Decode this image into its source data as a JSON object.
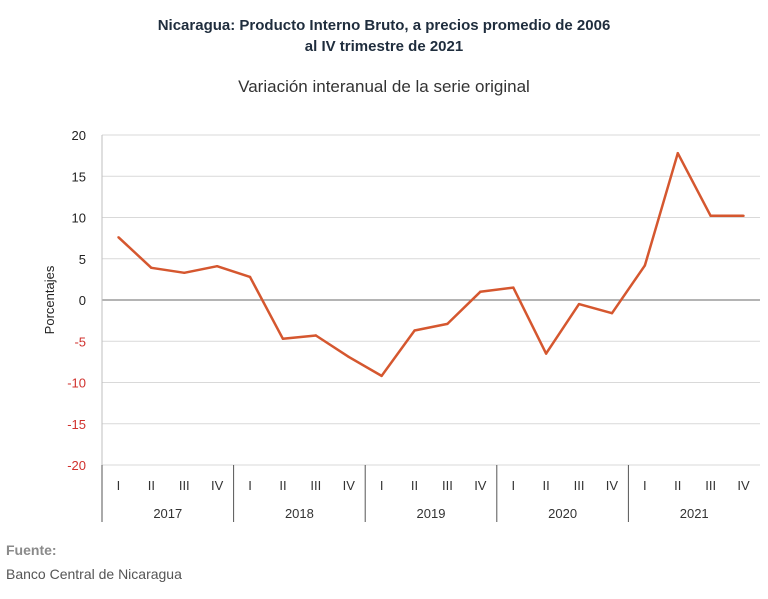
{
  "header": {
    "title_line1": "Nicaragua: Producto Interno Bruto, a precios promedio de 2006",
    "title_line2": "al IV trimestre de 2021",
    "subtitle": "Variación interanual de la serie original"
  },
  "footer": {
    "source_label": "Fuente:",
    "source_text": "Banco Central de Nicaragua"
  },
  "colors": {
    "line": "#d5572f",
    "grid": "#d9d9d9",
    "zero_line": "#888888",
    "negative_tick": "#d0312d"
  },
  "chart_data": {
    "type": "line",
    "title": "Nicaragua: Producto Interno Bruto, a precios promedio de 2006 al IV trimestre de 2021",
    "subtitle": "Variación interanual de la serie original",
    "ylabel": "Porcentajes",
    "xlabel": "",
    "ylim": [
      -20,
      20
    ],
    "yticks": [
      20,
      15,
      10,
      5,
      0,
      -5,
      -10,
      -15,
      -20
    ],
    "grid": true,
    "legend": "none",
    "years": [
      "2017",
      "2018",
      "2019",
      "2020",
      "2021"
    ],
    "quarters": [
      "I",
      "II",
      "III",
      "IV"
    ],
    "series": [
      {
        "values": [
          7.6,
          3.9,
          3.3,
          4.1,
          2.8,
          -4.7,
          -4.3,
          -6.9,
          -9.2,
          -3.7,
          -2.9,
          1.0,
          1.5,
          -6.5,
          -0.5,
          -1.6,
          4.2,
          17.8,
          10.2,
          10.2
        ]
      }
    ]
  }
}
